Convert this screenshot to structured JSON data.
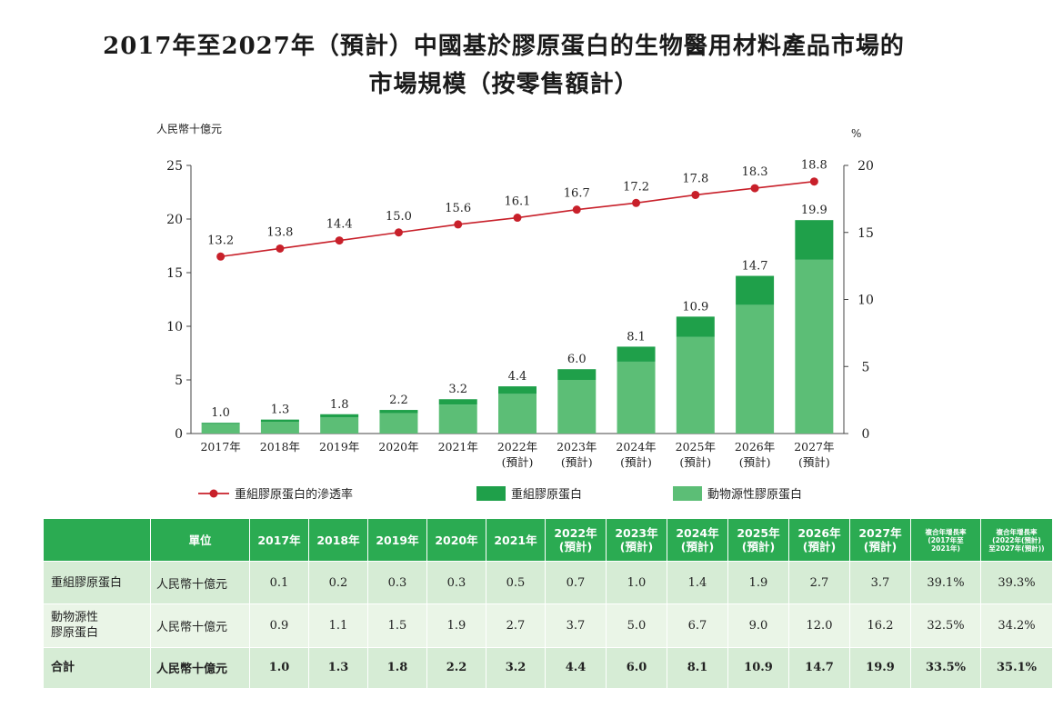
{
  "title": {
    "line1": "2017年至2027年（預計）中國基於膠原蛋白的生物醫用材料產品市場的",
    "line2": "市場規模（按零售額計）"
  },
  "chart_data": {
    "type": "bar",
    "stacked": true,
    "categories": [
      "2017年",
      "2018年",
      "2019年",
      "2020年",
      "2021年",
      "2022年\n(預計)",
      "2023年\n(預計)",
      "2024年\n(預計)",
      "2025年\n(預計)",
      "2026年\n(預計)",
      "2027年\n(預計)"
    ],
    "left_axis": {
      "unit_label": "人民幣十億元",
      "ylim": [
        0,
        25
      ],
      "ticks": [
        0,
        5,
        10,
        15,
        20,
        25
      ]
    },
    "right_axis": {
      "unit_label": "%",
      "ylim": [
        0,
        20
      ],
      "ticks": [
        0,
        5,
        10,
        15,
        20
      ]
    },
    "series": [
      {
        "name": "動物源性膠原蛋白",
        "type": "bar",
        "axis": "left",
        "color": "#5cbe76",
        "values": [
          0.9,
          1.1,
          1.5,
          1.9,
          2.7,
          3.7,
          5.0,
          6.7,
          9.0,
          12.0,
          16.2
        ]
      },
      {
        "name": "重組膠原蛋白",
        "type": "bar",
        "axis": "left",
        "color": "#1fa04a",
        "values": [
          0.1,
          0.2,
          0.3,
          0.3,
          0.5,
          0.7,
          1.0,
          1.4,
          1.9,
          2.7,
          3.7
        ]
      },
      {
        "name": "重組膠原蛋白的滲透率",
        "type": "line",
        "axis": "right",
        "color": "#c8202a",
        "values": [
          13.2,
          13.8,
          14.4,
          15.0,
          15.6,
          16.1,
          16.7,
          17.2,
          17.8,
          18.3,
          18.8
        ]
      }
    ],
    "total_labels": [
      "1.0",
      "1.3",
      "1.8",
      "2.2",
      "3.2",
      "4.4",
      "6.0",
      "8.1",
      "10.9",
      "14.7",
      "19.9"
    ],
    "rate_labels": [
      "13.2",
      "13.8",
      "14.4",
      "15.0",
      "15.6",
      "16.1",
      "16.7",
      "17.2",
      "17.8",
      "18.3",
      "18.8"
    ],
    "legend": {
      "position": "bottom",
      "items": [
        {
          "label": "重組膠原蛋白的滲透率",
          "kind": "line",
          "color": "#c8202a"
        },
        {
          "label": "重組膠原蛋白",
          "kind": "box",
          "color": "#1fa04a"
        },
        {
          "label": "動物源性膠原蛋白",
          "kind": "box",
          "color": "#5cbe76"
        }
      ]
    },
    "grid": false
  },
  "table": {
    "headers": [
      "",
      "單位",
      "2017年",
      "2018年",
      "2019年",
      "2020年",
      "2021年",
      "2022年\n(預計)",
      "2023年\n(預計)",
      "2024年\n(預計)",
      "2025年\n(預計)",
      "2026年\n(預計)",
      "2027年\n(預計)",
      "複合年增長率\n(2017年至\n2021年)",
      "複合年增長率\n(2022年(預計)\n至2027年(預計))"
    ],
    "rows": [
      {
        "label": "重組膠原蛋白",
        "unit": "人民幣十億元",
        "values": [
          "0.1",
          "0.2",
          "0.3",
          "0.3",
          "0.5",
          "0.7",
          "1.0",
          "1.4",
          "1.9",
          "2.7",
          "3.7",
          "39.1%",
          "39.3%"
        ]
      },
      {
        "label": "動物源性\n膠原蛋白",
        "unit": "人民幣十億元",
        "values": [
          "0.9",
          "1.1",
          "1.5",
          "1.9",
          "2.7",
          "3.7",
          "5.0",
          "6.7",
          "9.0",
          "12.0",
          "16.2",
          "32.5%",
          "34.2%"
        ]
      },
      {
        "label": "合計",
        "unit": "人民幣十億元",
        "values": [
          "1.0",
          "1.3",
          "1.8",
          "2.2",
          "3.2",
          "4.4",
          "6.0",
          "8.1",
          "10.9",
          "14.7",
          "19.9",
          "33.5%",
          "35.1%"
        ]
      }
    ]
  }
}
